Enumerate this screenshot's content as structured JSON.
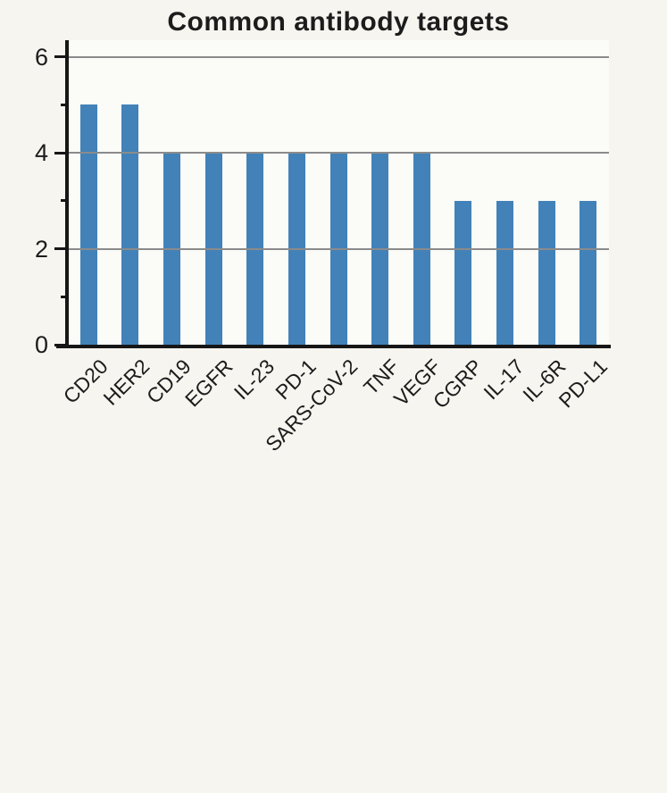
{
  "chart_data": {
    "type": "bar",
    "title": "Common antibody targets",
    "categories": [
      "CD20",
      "HER2",
      "CD19",
      "EGFR",
      "IL-23",
      "PD-1",
      "SARS-CoV-2",
      "TNF",
      "VEGF",
      "CGRP",
      "IL-17",
      "IL-6R",
      "PD-L1"
    ],
    "values": [
      5,
      5,
      4,
      4,
      4,
      4,
      4,
      4,
      4,
      3,
      3,
      3,
      3
    ],
    "xlabel": "",
    "ylabel": "",
    "ylim": [
      0,
      6
    ],
    "yticks_major": [
      0,
      2,
      4,
      6
    ],
    "yticks_minor": [
      1,
      3,
      5
    ],
    "gridline_values": [
      2,
      4,
      6
    ],
    "grid": true,
    "legend": "none",
    "x_label_rotation_deg": 45,
    "bar_color": "#4282b8",
    "grid_color": "#8b8b8b",
    "axis_color": "#161616",
    "text_color": "#1c1c1c",
    "background_color": "#f6f5f0",
    "plot_background_color": "#fbfbf8"
  }
}
